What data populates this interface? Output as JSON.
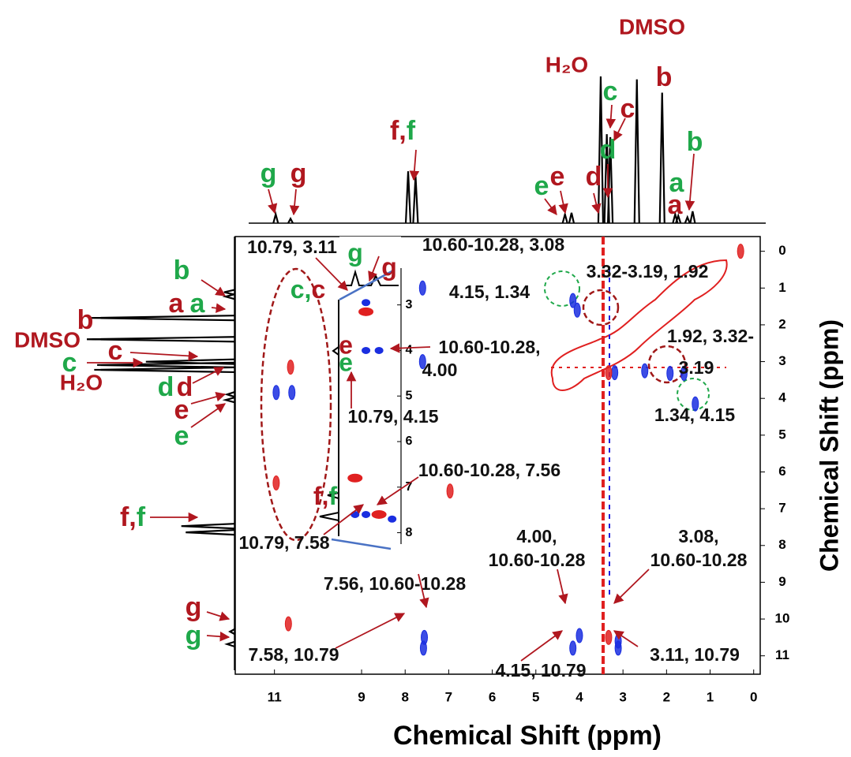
{
  "chart_data": {
    "type": "nmr2d",
    "xlabel": "Chemical Shift (ppm)",
    "ylabel": "Chemical Shift (ppm)",
    "xlim": [
      11.9,
      -0.15
    ],
    "ylim": [
      -0.4,
      11.5
    ],
    "xticks": [
      11,
      9,
      8,
      7,
      6,
      5,
      4,
      3,
      2,
      1,
      0
    ],
    "yticks": [
      0,
      1,
      2,
      3,
      4,
      5,
      6,
      7,
      8,
      9,
      10,
      11
    ],
    "top_spectrum": {
      "ppm": [
        10.79,
        10.45,
        7.75,
        7.58,
        4.15,
        4.0,
        3.33,
        3.19,
        3.11,
        2.5,
        1.92,
        1.62,
        1.55,
        1.34,
        1.22
      ],
      "height": [
        0.06,
        0.03,
        0.35,
        0.32,
        0.06,
        0.07,
        0.99,
        0.6,
        0.58,
        0.97,
        0.88,
        0.06,
        0.05,
        0.04,
        0.08
      ]
    },
    "left_spectrum": {
      "ppm": [
        1.22,
        1.34,
        1.92,
        2.5,
        3.11,
        3.2,
        3.33,
        4.0,
        4.15,
        7.58,
        7.75,
        10.45,
        10.79
      ],
      "height": [
        0.07,
        0.06,
        0.98,
        1.0,
        0.6,
        0.93,
        0.95,
        0.05,
        0.06,
        0.36,
        0.33,
        0.03,
        0.05
      ]
    },
    "cross_peaks": {
      "x": [
        4.15,
        4.05,
        1.34,
        1.92,
        1.6,
        3.11,
        3.11,
        4.15,
        4.0,
        7.58,
        7.56,
        3.19,
        2.5,
        10.96,
        10.6,
        7.6,
        7.6,
        3.33,
        10.63,
        10.96,
        10.68,
        0.3,
        3.33,
        6.97
      ],
      "y": [
        1.34,
        1.6,
        4.15,
        3.32,
        3.32,
        10.79,
        10.6,
        10.79,
        10.45,
        10.79,
        10.5,
        3.3,
        3.25,
        3.84,
        3.84,
        1.0,
        3.0,
        10.5,
        3.15,
        6.3,
        10.13,
        0.0,
        3.3,
        6.52
      ],
      "color": [
        "blue",
        "blue",
        "blue",
        "blue",
        "blue",
        "blue",
        "blue",
        "blue",
        "blue",
        "blue",
        "blue",
        "blue",
        "blue",
        "blue",
        "blue",
        "blue",
        "blue",
        "red",
        "red",
        "red",
        "red",
        "red",
        "red",
        "red"
      ]
    },
    "inset": {
      "ylim": [
        1.5,
        8.25
      ],
      "yticks": [
        3,
        4,
        5,
        6,
        7,
        8
      ],
      "x": [
        8.9,
        8.9,
        8.9,
        8.6,
        9.15,
        9.15,
        8.9,
        8.6,
        8.3
      ],
      "y": [
        3.15,
        2.95,
        4.0,
        4.0,
        6.8,
        7.6,
        7.6,
        7.6,
        7.7
      ],
      "color": [
        "red",
        "blue",
        "blue",
        "blue",
        "red",
        "blue",
        "blue",
        "red",
        "blue"
      ]
    },
    "top_labels": [
      {
        "text": "g",
        "color": "#1fa84a"
      },
      {
        "text": "g",
        "color": "#b0171f"
      },
      {
        "parts": [
          {
            "text": "f,",
            "color": "#b0171f"
          },
          {
            "text": "f",
            "color": "#1fa84a"
          }
        ]
      },
      {
        "text": "e",
        "color": "#1fa84a"
      },
      {
        "text": "e",
        "color": "#b0171f"
      },
      {
        "text": "d",
        "color": "#b0171f"
      },
      {
        "text": "d",
        "color": "#1fa84a"
      },
      {
        "text": "c",
        "color": "#1fa84a"
      },
      {
        "text": "c",
        "color": "#b0171f"
      },
      {
        "text": "H₂O",
        "color": "#b0171f"
      },
      {
        "text": "DMSO",
        "color": "#b0171f"
      },
      {
        "text": "b",
        "color": "#b0171f"
      },
      {
        "text": "b",
        "color": "#1fa84a"
      },
      {
        "text": "a",
        "color": "#1fa84a"
      },
      {
        "text": "a",
        "color": "#b0171f"
      }
    ],
    "left_labels": [
      {
        "text": "b",
        "color": "#1fa84a"
      },
      {
        "text": "a",
        "color": "#b0171f"
      },
      {
        "text": "a",
        "color": "#1fa84a"
      },
      {
        "text": "b",
        "color": "#b0171f"
      },
      {
        "text": "DMSO",
        "color": "#b0171f"
      },
      {
        "text": "c",
        "color": "#b0171f"
      },
      {
        "text": "c",
        "color": "#1fa84a"
      },
      {
        "text": "H₂O",
        "color": "#b0171f"
      },
      {
        "text": "d",
        "color": "#1fa84a"
      },
      {
        "text": "d",
        "color": "#b0171f"
      },
      {
        "text": "e",
        "color": "#b0171f"
      },
      {
        "text": "e",
        "color": "#1fa84a"
      },
      {
        "parts": [
          {
            "text": "f,",
            "color": "#b0171f"
          },
          {
            "text": "f",
            "color": "#1fa84a"
          }
        ]
      },
      {
        "text": "g",
        "color": "#b0171f"
      },
      {
        "text": "g",
        "color": "#1fa84a"
      }
    ],
    "inset_labels": [
      {
        "text": "g",
        "color": "#1fa84a"
      },
      {
        "text": "g",
        "color": "#b0171f"
      },
      {
        "parts": [
          {
            "text": "c,",
            "color": "#1fa84a"
          },
          {
            "text": "c",
            "color": "#b0171f"
          }
        ]
      },
      {
        "text": "e",
        "color": "#b0171f"
      },
      {
        "text": "e",
        "color": "#1fa84a"
      },
      {
        "parts": [
          {
            "text": "f,",
            "color": "#b0171f"
          },
          {
            "text": "f",
            "color": "#1fa84a"
          }
        ]
      }
    ],
    "annotations": [
      "10.79, 3.11",
      "10.60-10.28, 3.08",
      "3.32-3.19, 1.92",
      "4.15, 1.34",
      "10.60-10.28,",
      "4.00",
      "10.79, 4.15",
      "1.92, 3.32-",
      "3.19",
      "1.34, 4.15",
      "10.60-10.28, 7.56",
      "10.79, 7.58",
      "4.00,",
      "10.60-10.28",
      "3.08,",
      "10.60-10.28",
      "7.56, 10.60-10.28",
      "7.58, 10.79",
      "4.15, 10.79",
      "3.11, 10.79"
    ]
  }
}
